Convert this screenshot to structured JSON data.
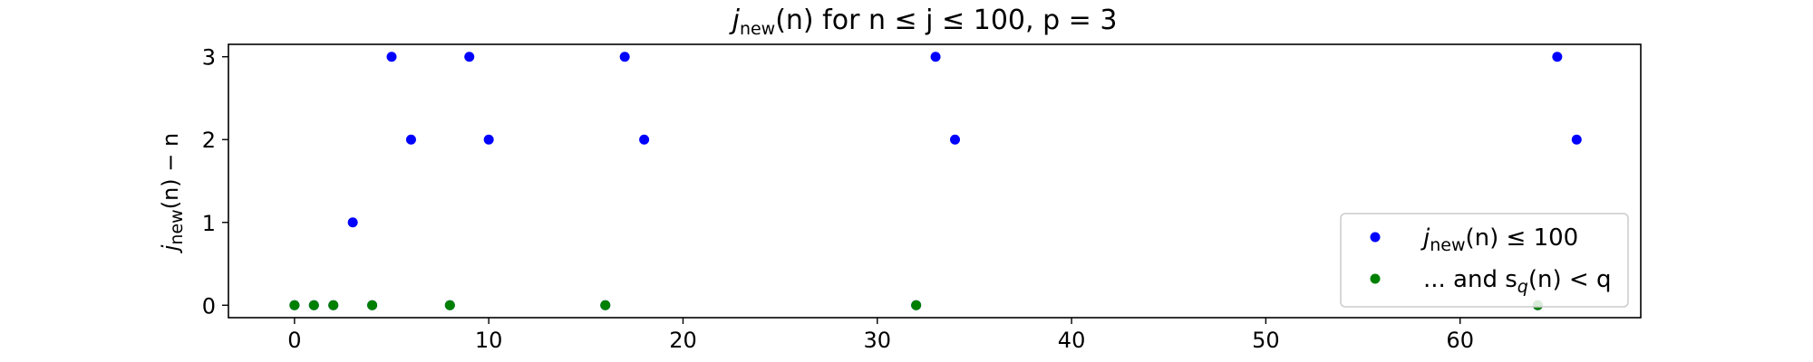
{
  "chart_data": {
    "type": "scatter",
    "title_parts": [
      "j",
      "new",
      "(n) for n ≤ j ≤ 100, p = 3"
    ],
    "xlabel": "",
    "ylabel_parts": [
      "j",
      "new",
      "(n) − n"
    ],
    "xlim": [
      -3.4,
      69.3
    ],
    "ylim": [
      -0.15,
      3.15
    ],
    "xticks": [
      0,
      10,
      20,
      30,
      40,
      50,
      60
    ],
    "yticks": [
      0,
      1,
      2,
      3
    ],
    "grid": false,
    "legend_position": "lower-right",
    "series": [
      {
        "legend_parts": [
          "j",
          "new",
          "(n) ≤ 100"
        ],
        "color": "#0000ff",
        "points": [
          {
            "x": 0,
            "y": 0
          },
          {
            "x": 1,
            "y": 0
          },
          {
            "x": 2,
            "y": 0
          },
          {
            "x": 3,
            "y": 1
          },
          {
            "x": 4,
            "y": 0
          },
          {
            "x": 5,
            "y": 3
          },
          {
            "x": 6,
            "y": 2
          },
          {
            "x": 8,
            "y": 0
          },
          {
            "x": 9,
            "y": 3
          },
          {
            "x": 10,
            "y": 2
          },
          {
            "x": 16,
            "y": 0
          },
          {
            "x": 17,
            "y": 3
          },
          {
            "x": 18,
            "y": 2
          },
          {
            "x": 32,
            "y": 0
          },
          {
            "x": 33,
            "y": 3
          },
          {
            "x": 34,
            "y": 2
          },
          {
            "x": 64,
            "y": 0
          },
          {
            "x": 65,
            "y": 3
          },
          {
            "x": 66,
            "y": 2
          }
        ]
      },
      {
        "legend_parts": [
          "... and s",
          "q",
          "(n) < q"
        ],
        "color": "#008000",
        "points": [
          {
            "x": 0,
            "y": 0
          },
          {
            "x": 1,
            "y": 0
          },
          {
            "x": 2,
            "y": 0
          },
          {
            "x": 4,
            "y": 0
          },
          {
            "x": 8,
            "y": 0
          },
          {
            "x": 16,
            "y": 0
          },
          {
            "x": 32,
            "y": 0
          },
          {
            "x": 64,
            "y": 0
          }
        ]
      }
    ]
  }
}
